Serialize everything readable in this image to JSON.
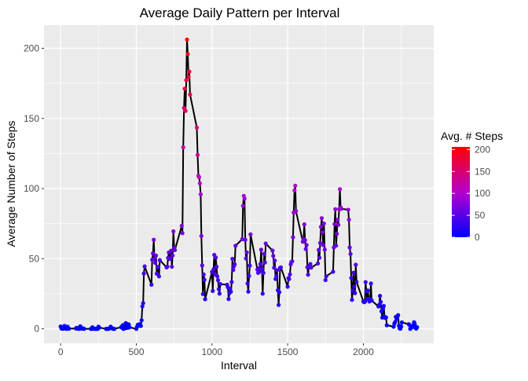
{
  "chart_data": {
    "type": "line",
    "title": "Average Daily Pattern per Interval",
    "xlabel": "Interval",
    "ylabel": "Average Number of Steps",
    "xlim": [
      -110,
      2465
    ],
    "ylim": [
      -10.3,
      216.5
    ],
    "x_ticks": [
      0,
      500,
      1000,
      1500,
      2000
    ],
    "y_ticks": [
      0,
      50,
      100,
      150,
      200
    ],
    "grid": true,
    "panel_background": "#ebebeb",
    "grid_color": "#ffffff",
    "line_color": "#000000",
    "legend": {
      "title": "Avg. # Steps",
      "position": "right",
      "ticks": [
        0,
        50,
        100,
        150,
        200
      ],
      "low_color": "#0000ff",
      "high_color": "#ff0000",
      "min_value": 0,
      "max_value": 206
    },
    "series": [
      {
        "points": [
          [
            0,
            1.7
          ],
          [
            5,
            0.3
          ],
          [
            10,
            0.1
          ],
          [
            15,
            0.2
          ],
          [
            20,
            0.1
          ],
          [
            25,
            2.1
          ],
          [
            30,
            0.5
          ],
          [
            35,
            0.9
          ],
          [
            40,
            0
          ],
          [
            45,
            1.5
          ],
          [
            50,
            0.3
          ],
          [
            55,
            0.1
          ],
          [
            100,
            0.3
          ],
          [
            105,
            0.7
          ],
          [
            110,
            0.2
          ],
          [
            115,
            0.3
          ],
          [
            120,
            0
          ],
          [
            125,
            1.1
          ],
          [
            130,
            1.8
          ],
          [
            135,
            0.2
          ],
          [
            140,
            0.2
          ],
          [
            145,
            0.4
          ],
          [
            150,
            0.3
          ],
          [
            155,
            0
          ],
          [
            200,
            0
          ],
          [
            205,
            0
          ],
          [
            210,
            1.1
          ],
          [
            215,
            0.3
          ],
          [
            220,
            0
          ],
          [
            225,
            0.1
          ],
          [
            230,
            0
          ],
          [
            235,
            0.2
          ],
          [
            240,
            0
          ],
          [
            245,
            0
          ],
          [
            250,
            1.5
          ],
          [
            255,
            0.9
          ],
          [
            300,
            0
          ],
          [
            305,
            0
          ],
          [
            310,
            0
          ],
          [
            315,
            0
          ],
          [
            320,
            0.2
          ],
          [
            325,
            0.6
          ],
          [
            330,
            1.6
          ],
          [
            335,
            0.6
          ],
          [
            340,
            0.5
          ],
          [
            345,
            0.1
          ],
          [
            350,
            0
          ],
          [
            355,
            0
          ],
          [
            400,
            1.2
          ],
          [
            405,
            0.9
          ],
          [
            410,
            2.6
          ],
          [
            415,
            0
          ],
          [
            420,
            0.3
          ],
          [
            425,
            0.4
          ],
          [
            430,
            4.1
          ],
          [
            435,
            0.7
          ],
          [
            440,
            3.5
          ],
          [
            445,
            0.8
          ],
          [
            450,
            3.1
          ],
          [
            455,
            1.1
          ],
          [
            500,
            0
          ],
          [
            505,
            1.6
          ],
          [
            510,
            3.0
          ],
          [
            515,
            2.2
          ],
          [
            520,
            3.3
          ],
          [
            525,
            3.0
          ],
          [
            530,
            2.1
          ],
          [
            535,
            6.1
          ],
          [
            540,
            16.0
          ],
          [
            545,
            18.3
          ],
          [
            550,
            39.5
          ],
          [
            555,
            44.5
          ],
          [
            600,
            31.5
          ],
          [
            605,
            49.3
          ],
          [
            610,
            53.8
          ],
          [
            615,
            63.5
          ],
          [
            620,
            50.0
          ],
          [
            625,
            47.1
          ],
          [
            630,
            52.2
          ],
          [
            635,
            39.3
          ],
          [
            640,
            44.0
          ],
          [
            645,
            44.2
          ],
          [
            650,
            37.4
          ],
          [
            655,
            49.0
          ],
          [
            700,
            43.8
          ],
          [
            705,
            44.4
          ],
          [
            710,
            50.5
          ],
          [
            715,
            54.5
          ],
          [
            720,
            49.9
          ],
          [
            725,
            50.0
          ],
          [
            730,
            55.7
          ],
          [
            735,
            44.3
          ],
          [
            740,
            52.3
          ],
          [
            745,
            69.5
          ],
          [
            750,
            57.8
          ],
          [
            755,
            56.2
          ],
          [
            800,
            73.4
          ],
          [
            805,
            68.2
          ],
          [
            810,
            129.4
          ],
          [
            815,
            157.5
          ],
          [
            820,
            171.2
          ],
          [
            825,
            155.4
          ],
          [
            830,
            177.3
          ],
          [
            835,
            206.2
          ],
          [
            840,
            195.9
          ],
          [
            845,
            179.6
          ],
          [
            850,
            183.4
          ],
          [
            855,
            167.0
          ],
          [
            900,
            143.5
          ],
          [
            905,
            124.0
          ],
          [
            910,
            109.1
          ],
          [
            915,
            108.1
          ],
          [
            920,
            103.7
          ],
          [
            925,
            95.9
          ],
          [
            930,
            66.2
          ],
          [
            935,
            45.2
          ],
          [
            940,
            24.8
          ],
          [
            945,
            38.8
          ],
          [
            950,
            35.0
          ],
          [
            955,
            21.1
          ],
          [
            1000,
            40.6
          ],
          [
            1005,
            27.0
          ],
          [
            1010,
            42.4
          ],
          [
            1015,
            52.7
          ],
          [
            1020,
            38.9
          ],
          [
            1025,
            50.8
          ],
          [
            1030,
            44.3
          ],
          [
            1035,
            37.4
          ],
          [
            1040,
            34.7
          ],
          [
            1045,
            28.3
          ],
          [
            1050,
            25.1
          ],
          [
            1055,
            31.9
          ],
          [
            1100,
            31.4
          ],
          [
            1105,
            29.7
          ],
          [
            1110,
            21.3
          ],
          [
            1115,
            25.5
          ],
          [
            1120,
            28.4
          ],
          [
            1125,
            26.5
          ],
          [
            1130,
            33.4
          ],
          [
            1135,
            49.9
          ],
          [
            1140,
            42.0
          ],
          [
            1145,
            44.6
          ],
          [
            1150,
            46.0
          ],
          [
            1155,
            59.2
          ],
          [
            1200,
            63.9
          ],
          [
            1205,
            87.7
          ],
          [
            1210,
            94.8
          ],
          [
            1215,
            92.8
          ],
          [
            1220,
            63.4
          ],
          [
            1225,
            50.2
          ],
          [
            1230,
            54.5
          ],
          [
            1235,
            32.4
          ],
          [
            1240,
            26.5
          ],
          [
            1245,
            37.7
          ],
          [
            1250,
            45.1
          ],
          [
            1255,
            67.3
          ],
          [
            1300,
            42.3
          ],
          [
            1305,
            39.9
          ],
          [
            1310,
            43.3
          ],
          [
            1315,
            40.9
          ],
          [
            1320,
            46.2
          ],
          [
            1325,
            56.4
          ],
          [
            1330,
            42.8
          ],
          [
            1335,
            25.1
          ],
          [
            1340,
            39.9
          ],
          [
            1345,
            53.5
          ],
          [
            1350,
            47.3
          ],
          [
            1355,
            60.8
          ],
          [
            1400,
            55.8
          ],
          [
            1405,
            51.96
          ],
          [
            1410,
            43.6
          ],
          [
            1415,
            48.7
          ],
          [
            1420,
            35.5
          ],
          [
            1425,
            37.5
          ],
          [
            1430,
            41.8
          ],
          [
            1435,
            27.5
          ],
          [
            1440,
            17.1
          ],
          [
            1445,
            26.1
          ],
          [
            1450,
            43.6
          ],
          [
            1455,
            43.8
          ],
          [
            1500,
            30.0
          ],
          [
            1505,
            36.1
          ],
          [
            1510,
            35.5
          ],
          [
            1515,
            38.8
          ],
          [
            1520,
            45.96
          ],
          [
            1525,
            47.8
          ],
          [
            1530,
            48.1
          ],
          [
            1535,
            65.3
          ],
          [
            1540,
            82.9
          ],
          [
            1545,
            98.7
          ],
          [
            1550,
            102.1
          ],
          [
            1555,
            83.96
          ],
          [
            1600,
            62.1
          ],
          [
            1605,
            64.1
          ],
          [
            1610,
            74.5
          ],
          [
            1615,
            63.2
          ],
          [
            1620,
            56.9
          ],
          [
            1625,
            59.8
          ],
          [
            1630,
            43.9
          ],
          [
            1635,
            38.6
          ],
          [
            1640,
            44.7
          ],
          [
            1645,
            45.5
          ],
          [
            1650,
            46.2
          ],
          [
            1655,
            43.7
          ],
          [
            1700,
            46.6
          ],
          [
            1705,
            56.3
          ],
          [
            1710,
            50.7
          ],
          [
            1715,
            61.2
          ],
          [
            1720,
            72.7
          ],
          [
            1725,
            78.9
          ],
          [
            1730,
            68.9
          ],
          [
            1735,
            59.7
          ],
          [
            1740,
            75.1
          ],
          [
            1745,
            56.5
          ],
          [
            1750,
            34.8
          ],
          [
            1755,
            37.5
          ],
          [
            1800,
            40.7
          ],
          [
            1805,
            58.0
          ],
          [
            1810,
            74.7
          ],
          [
            1815,
            85.3
          ],
          [
            1820,
            59.3
          ],
          [
            1825,
            67.8
          ],
          [
            1830,
            77.7
          ],
          [
            1835,
            74.2
          ],
          [
            1840,
            85.3
          ],
          [
            1845,
            99.5
          ],
          [
            1850,
            86.6
          ],
          [
            1855,
            85.6
          ],
          [
            1900,
            84.9
          ],
          [
            1905,
            77.8
          ],
          [
            1910,
            58.0
          ],
          [
            1915,
            53.4
          ],
          [
            1920,
            36.3
          ],
          [
            1925,
            20.7
          ],
          [
            1930,
            27.4
          ],
          [
            1935,
            40.0
          ],
          [
            1940,
            30.2
          ],
          [
            1945,
            25.5
          ],
          [
            1950,
            45.7
          ],
          [
            1955,
            33.5
          ],
          [
            2000,
            19.6
          ],
          [
            2005,
            19.0
          ],
          [
            2010,
            19.3
          ],
          [
            2015,
            33.3
          ],
          [
            2020,
            26.8
          ],
          [
            2025,
            21.2
          ],
          [
            2030,
            27.3
          ],
          [
            2035,
            21.3
          ],
          [
            2040,
            19.5
          ],
          [
            2045,
            21.3
          ],
          [
            2050,
            32.3
          ],
          [
            2055,
            20.2
          ],
          [
            2100,
            15.9
          ],
          [
            2105,
            17.2
          ],
          [
            2110,
            23.5
          ],
          [
            2115,
            19.2
          ],
          [
            2120,
            12.5
          ],
          [
            2125,
            8.0
          ],
          [
            2130,
            14.7
          ],
          [
            2135,
            16.3
          ],
          [
            2140,
            8.7
          ],
          [
            2145,
            7.8
          ],
          [
            2150,
            8.1
          ],
          [
            2155,
            2.6
          ],
          [
            2200,
            1.5
          ],
          [
            2205,
            3.7
          ],
          [
            2210,
            4.8
          ],
          [
            2215,
            8.5
          ],
          [
            2220,
            7.1
          ],
          [
            2225,
            8.7
          ],
          [
            2230,
            9.8
          ],
          [
            2235,
            2.2
          ],
          [
            2240,
            0.3
          ],
          [
            2245,
            0.1
          ],
          [
            2250,
            1.6
          ],
          [
            2255,
            4.6
          ],
          [
            2300,
            3.3
          ],
          [
            2305,
            2.8
          ],
          [
            2310,
            0
          ],
          [
            2315,
            0.8
          ],
          [
            2320,
            1.0
          ],
          [
            2325,
            1.6
          ],
          [
            2330,
            2.6
          ],
          [
            2335,
            4.7
          ],
          [
            2340,
            3.3
          ],
          [
            2345,
            0.6
          ],
          [
            2350,
            0.2
          ],
          [
            2355,
            1.1
          ]
        ]
      }
    ]
  }
}
